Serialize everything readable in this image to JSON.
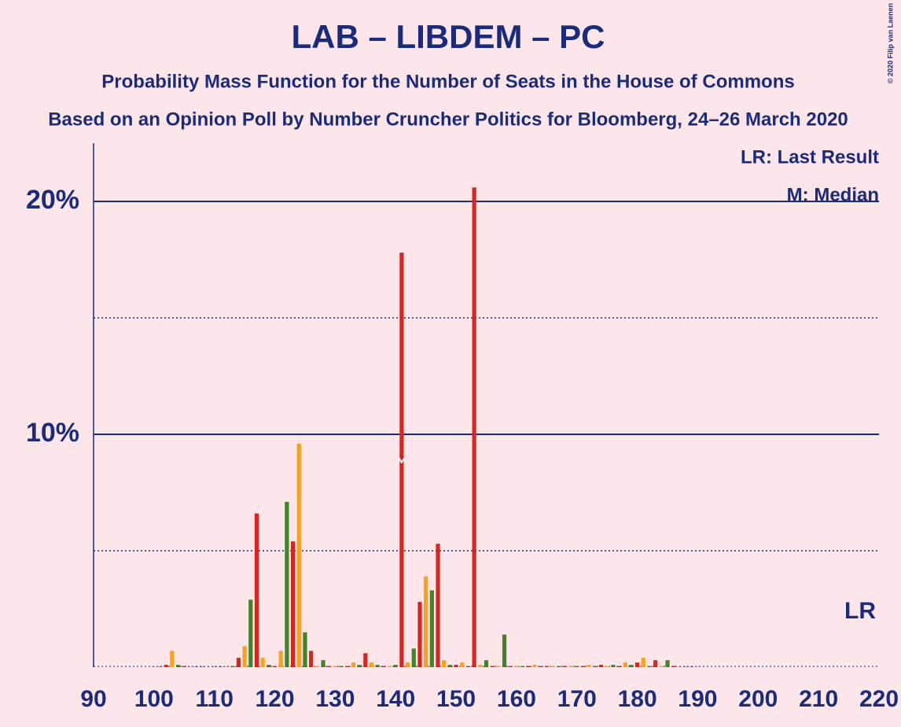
{
  "chart_data": {
    "type": "bar",
    "title": "LAB – LIBDEM – PC",
    "subtitle": "Probability Mass Function for the Number of Seats in the House of Commons",
    "subtitle2": "Based on an Opinion Poll by Number Cruncher Politics for Bloomberg, 24–26 March 2020",
    "credit": "© 2020 Filip van Laenen",
    "legend_lr": "LR: Last Result",
    "legend_median": "M: Median",
    "lr_label": "LR",
    "median": 141,
    "x": [
      100,
      101,
      102,
      103,
      104,
      105,
      106,
      107,
      108,
      109,
      110,
      111,
      112,
      113,
      114,
      115,
      116,
      117,
      118,
      119,
      120,
      121,
      122,
      123,
      124,
      125,
      126,
      127,
      128,
      129,
      130,
      131,
      132,
      133,
      134,
      135,
      136,
      137,
      138,
      139,
      140,
      141,
      142,
      143,
      144,
      145,
      146,
      147,
      148,
      149,
      150,
      151,
      152,
      153,
      154,
      155,
      156,
      157,
      158,
      159,
      160,
      161,
      162,
      163,
      164,
      165,
      166,
      167,
      168,
      169,
      170,
      171,
      172,
      173,
      174,
      175,
      176,
      177,
      178,
      179,
      180,
      181,
      182,
      183,
      184,
      185,
      186,
      187,
      188,
      189,
      190
    ],
    "values": [
      0.02,
      0.02,
      0.1,
      0.7,
      0.1,
      0.05,
      0.02,
      0.02,
      0.02,
      0.02,
      0.02,
      0.02,
      0.02,
      0.05,
      0.4,
      0.9,
      2.9,
      6.6,
      0.4,
      0.1,
      0.05,
      0.7,
      7.1,
      5.4,
      9.6,
      1.5,
      0.7,
      0.05,
      0.3,
      0.05,
      0.05,
      0.05,
      0.05,
      0.2,
      0.1,
      0.6,
      0.2,
      0.1,
      0.05,
      0.05,
      0.1,
      17.8,
      0.2,
      0.8,
      2.8,
      3.9,
      3.3,
      5.3,
      0.3,
      0.1,
      0.1,
      0.2,
      0.05,
      20.6,
      0.1,
      0.3,
      0.05,
      0.05,
      1.4,
      0.05,
      0.05,
      0.05,
      0.05,
      0.1,
      0.05,
      0.05,
      0.05,
      0.05,
      0.05,
      0.05,
      0.05,
      0.05,
      0.1,
      0.05,
      0.1,
      0.05,
      0.1,
      0.05,
      0.2,
      0.1,
      0.2,
      0.4,
      0.05,
      0.3,
      0.05,
      0.3,
      0.05,
      0.02,
      0.02,
      0.02,
      0.02
    ],
    "colors": [
      "#f9a11b",
      "#3f8428",
      "#dc241f",
      "#f9a11b",
      "#3f8428",
      "#dc241f",
      "#f9a11b",
      "#3f8428",
      "#dc241f",
      "#f9a11b",
      "#3f8428",
      "#dc241f",
      "#f9a11b",
      "#3f8428",
      "#dc241f",
      "#f9a11b",
      "#3f8428",
      "#dc241f",
      "#f9a11b",
      "#3f8428",
      "#dc241f",
      "#f9a11b",
      "#3f8428",
      "#dc241f",
      "#f9a11b",
      "#3f8428",
      "#dc241f",
      "#f9a11b",
      "#3f8428",
      "#dc241f",
      "#f9a11b",
      "#3f8428",
      "#dc241f",
      "#f9a11b",
      "#3f8428",
      "#dc241f",
      "#f9a11b",
      "#3f8428",
      "#dc241f",
      "#f9a11b",
      "#3f8428",
      "#dc241f",
      "#f9a11b",
      "#3f8428",
      "#dc241f",
      "#f9a11b",
      "#3f8428",
      "#dc241f",
      "#f9a11b",
      "#3f8428",
      "#dc241f",
      "#f9a11b",
      "#3f8428",
      "#dc241f",
      "#f9a11b",
      "#3f8428",
      "#dc241f",
      "#f9a11b",
      "#3f8428",
      "#dc241f",
      "#f9a11b",
      "#3f8428",
      "#dc241f",
      "#f9a11b",
      "#3f8428",
      "#dc241f",
      "#f9a11b",
      "#3f8428",
      "#dc241f",
      "#f9a11b",
      "#3f8428",
      "#dc241f",
      "#f9a11b",
      "#3f8428",
      "#dc241f",
      "#f9a11b",
      "#3f8428",
      "#dc241f",
      "#f9a11b",
      "#3f8428",
      "#dc241f",
      "#f9a11b",
      "#3f8428",
      "#dc241f",
      "#f9a11b",
      "#3f8428",
      "#dc241f",
      "#f9a11b",
      "#3f8428",
      "#dc241f",
      "#f9a11b"
    ],
    "xlim": [
      90,
      220
    ],
    "xticks": [
      90,
      100,
      110,
      120,
      130,
      140,
      150,
      160,
      170,
      180,
      190,
      200,
      210,
      220
    ],
    "ylim": [
      0,
      22.5
    ],
    "yticks": [
      {
        "value": 10,
        "label": "10%"
      },
      {
        "value": 20,
        "label": "20%"
      }
    ],
    "minor_grid": [
      5,
      15
    ]
  }
}
